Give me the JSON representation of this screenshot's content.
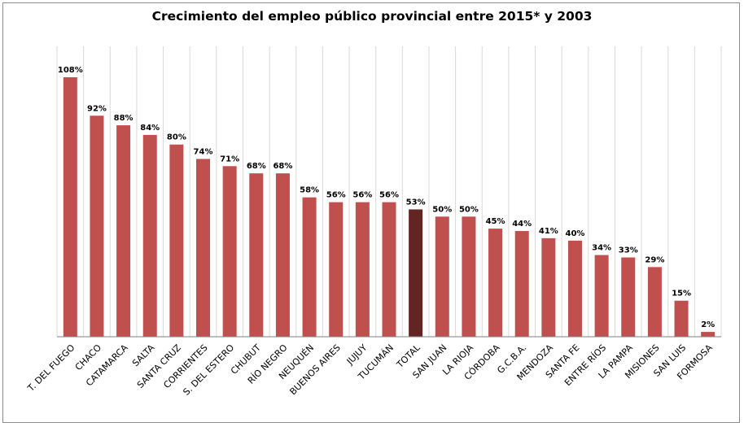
{
  "chart_data": {
    "type": "bar",
    "title": "Crecimiento del empleo público provincial entre 2015* y 2003",
    "categories": [
      "T. DEL FUEGO",
      "CHACO",
      "CATAMARCA",
      "SALTA",
      "SANTA CRUZ",
      "CORRIENTES",
      "S. DEL ESTERO",
      "CHUBUT",
      "RÍO NEGRO",
      "NEUQUÉN",
      "BUENOS AIRES",
      "JUJUY",
      "TUCUMÁN",
      "TOTAL",
      "SAN JUAN",
      "LA RIOJA",
      "CÓRDOBA",
      "G.C.B.A.",
      "MENDOZA",
      "SANTA FE",
      "ENTRE RÍOS",
      "LA PAMPA",
      "MISIONES",
      "SAN LUIS",
      "FORMOSA"
    ],
    "values": [
      108,
      92,
      88,
      84,
      80,
      74,
      71,
      68,
      68,
      58,
      56,
      56,
      56,
      53,
      50,
      50,
      45,
      44,
      41,
      40,
      34,
      33,
      29,
      15,
      2
    ],
    "value_labels": [
      "108%",
      "92%",
      "88%",
      "84%",
      "80%",
      "74%",
      "71%",
      "68%",
      "68%",
      "58%",
      "56%",
      "56%",
      "56%",
      "53%",
      "50%",
      "50%",
      "45%",
      "44%",
      "41%",
      "40%",
      "34%",
      "33%",
      "29%",
      "15%",
      "2%"
    ],
    "highlight_category": "TOTAL",
    "colors": {
      "bar": "#c0504d",
      "highlight": "#632523",
      "grid": "#d9d9d9",
      "axis": "#808080"
    },
    "xlabel": "",
    "ylabel": "",
    "ylim": [
      0,
      108
    ],
    "grid": "vertical",
    "legend": "none"
  }
}
